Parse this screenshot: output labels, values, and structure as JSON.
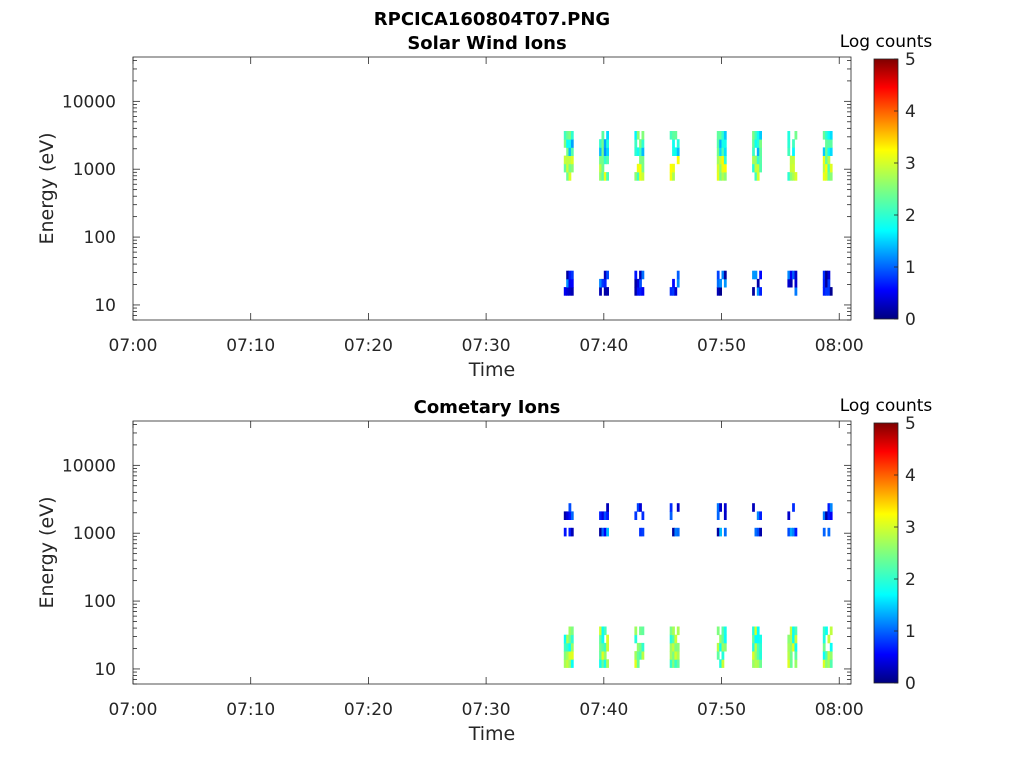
{
  "figure_title": "RPCICA160804T07.PNG",
  "colors": {
    "colormap": [
      "#00007f",
      "#0000ff",
      "#007fff",
      "#00ffff",
      "#7fff7f",
      "#ffff00",
      "#ff7f00",
      "#ff0000",
      "#7f0000"
    ]
  },
  "chart_data": [
    {
      "type": "heatmap",
      "title": "Solar Wind Ions",
      "xlabel": "Time",
      "ylabel": "Energy (eV)",
      "x_scale": "time",
      "y_scale": "log",
      "xlim": [
        "07:00",
        "08:01"
      ],
      "ylim": [
        6,
        45000
      ],
      "x_ticks": [
        "07:00",
        "07:10",
        "07:20",
        "07:30",
        "07:40",
        "07:50",
        "08:00"
      ],
      "y_ticks": [
        "10",
        "100",
        "1000",
        "10000"
      ],
      "colorbar": {
        "label": "Log counts",
        "range": [
          0,
          5
        ],
        "ticks": [
          "0",
          "1",
          "2",
          "3",
          "4",
          "5"
        ]
      },
      "scan_times": [
        "07:37",
        "07:40",
        "07:43",
        "07:46",
        "07:50",
        "07:53",
        "07:56",
        "07:59"
      ],
      "bands": [
        {
          "energy_range": [
            700,
            1800
          ],
          "log_counts": 2.6
        },
        {
          "energy_range": [
            1800,
            4000
          ],
          "log_counts": 1.9
        },
        {
          "energy_range": [
            14,
            32
          ],
          "log_counts": 0.6
        }
      ]
    },
    {
      "type": "heatmap",
      "title": "Cometary Ions",
      "xlabel": "Time",
      "ylabel": "Energy (eV)",
      "x_scale": "time",
      "y_scale": "log",
      "xlim": [
        "07:00",
        "08:01"
      ],
      "ylim": [
        6,
        45000
      ],
      "x_ticks": [
        "07:00",
        "07:10",
        "07:20",
        "07:30",
        "07:40",
        "07:50",
        "08:00"
      ],
      "y_ticks": [
        "10",
        "100",
        "1000",
        "10000"
      ],
      "colorbar": {
        "label": "Log counts",
        "range": [
          0,
          5
        ],
        "ticks": [
          "0",
          "1",
          "2",
          "3",
          "4",
          "5"
        ]
      },
      "scan_times": [
        "07:37",
        "07:40",
        "07:43",
        "07:46",
        "07:50",
        "07:53",
        "07:56",
        "07:59"
      ],
      "bands": [
        {
          "energy_range": [
            800,
            1200
          ],
          "log_counts": 0.8
        },
        {
          "energy_range": [
            1800,
            3000
          ],
          "log_counts": 0.5
        },
        {
          "energy_range": [
            12,
            38
          ],
          "log_counts": 2.4
        }
      ]
    }
  ]
}
